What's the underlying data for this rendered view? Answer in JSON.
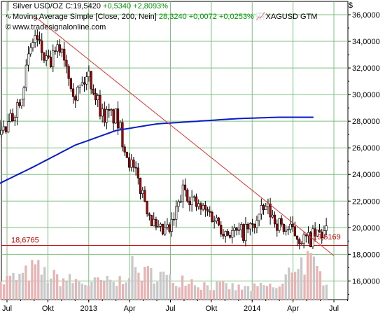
{
  "legend": {
    "line1_icon": "candlestick-icon",
    "line1_name": "Silver USD/OZ",
    "line1_close": "C:19,5420",
    "line1_change": "+0,5340",
    "line1_pct": "+2,8093%",
    "line2_icon": "line-icon",
    "line2_name": "Moving Average Simple [Close, 200, Nein]",
    "line2_value": "28,3240",
    "line2_change": "+0,0072",
    "line2_pct": "+0,0253%",
    "line2_symbol": "XAGUSD GTM",
    "line3_icon": "copyright-icon",
    "line3_text": "www.tradesignalonline.com"
  },
  "top_right_glyph": "$",
  "colors": {
    "grid": "#7fbf7f",
    "axis": "#000000",
    "ma": "#0a1ac8",
    "trend": "#e03030",
    "support": "#c00000",
    "candle_up": "#ffffff",
    "candle_down": "#b00000",
    "wick": "#000000",
    "volume_down": "#e9b3b3",
    "volume_up": "#c8c8c8",
    "positive_text": "#009900"
  },
  "chart_data": {
    "type": "line",
    "y_axis_ticks": [
      "16,0000",
      "18,0000",
      "20,0000",
      "22,0000",
      "24,0000",
      "26,0000",
      "28,0000",
      "30,0000",
      "32,0000",
      "34,0000",
      "36,0000"
    ],
    "x_axis_ticks": [
      "Jul",
      "Okt",
      "2013",
      "Apr",
      "Jul",
      "Okt",
      "2014",
      "Apr",
      "Jul"
    ],
    "ylim": [
      14.6,
      37.0
    ],
    "x_months": [
      "2012-07",
      "2012-10",
      "2013-01",
      "2013-04",
      "2013-07",
      "2013-10",
      "2014-01",
      "2014-04",
      "2014-07"
    ],
    "support_level": {
      "value": 18.6765,
      "label": "18,6765"
    },
    "trendline": {
      "label": "19,5169",
      "from": [
        "2012-09",
        35.9
      ],
      "to": [
        "2014-07",
        17.9
      ]
    },
    "series": [
      {
        "name": "Silver USD/OZ",
        "type": "candlestick",
        "x": [
          "2012-06",
          "2012-07",
          "2012-08",
          "2012-09",
          "2012-10",
          "2012-11",
          "2012-12",
          "2013-01",
          "2013-02",
          "2013-03",
          "2013-04",
          "2013-05",
          "2013-06",
          "2013-07",
          "2013-08",
          "2013-09",
          "2013-10",
          "2013-11",
          "2013-12",
          "2014-01",
          "2014-02",
          "2014-03",
          "2014-04",
          "2014-05",
          "2014-06"
        ],
        "close": [
          27.5,
          27.3,
          30.0,
          34.5,
          32.1,
          33.7,
          30.0,
          31.5,
          28.5,
          28.3,
          25.0,
          22.5,
          19.5,
          19.8,
          23.0,
          21.5,
          21.0,
          19.8,
          19.5,
          20.0,
          21.5,
          20.2,
          19.6,
          19.0,
          19.54
        ]
      },
      {
        "name": "Moving Average Simple [Close, 200, Nein]",
        "type": "line",
        "x": [
          "2012-06",
          "2012-09",
          "2012-12",
          "2013-03",
          "2013-06",
          "2013-09",
          "2013-12",
          "2014-03",
          "2014-06"
        ],
        "y": [
          23.1,
          24.6,
          26.2,
          27.3,
          27.8,
          28.0,
          28.2,
          28.3,
          28.3
        ]
      },
      {
        "name": "Volume",
        "type": "bar",
        "x": [
          "2012-06",
          "2012-07",
          "2012-08",
          "2012-09",
          "2012-10",
          "2012-11",
          "2012-12",
          "2013-01",
          "2013-02",
          "2013-03",
          "2013-04",
          "2013-05",
          "2013-06",
          "2013-07",
          "2013-08",
          "2013-09",
          "2013-10",
          "2013-11",
          "2013-12",
          "2014-01",
          "2014-02",
          "2014-03",
          "2014-04",
          "2014-05",
          "2014-06"
        ],
        "y": [
          0.25,
          0.45,
          0.5,
          0.7,
          0.5,
          0.45,
          0.4,
          0.35,
          0.4,
          0.35,
          0.7,
          0.55,
          0.6,
          0.4,
          0.5,
          0.35,
          0.3,
          0.3,
          0.25,
          0.25,
          0.3,
          0.25,
          0.8,
          0.85,
          0.5
        ]
      }
    ],
    "grid": true
  }
}
